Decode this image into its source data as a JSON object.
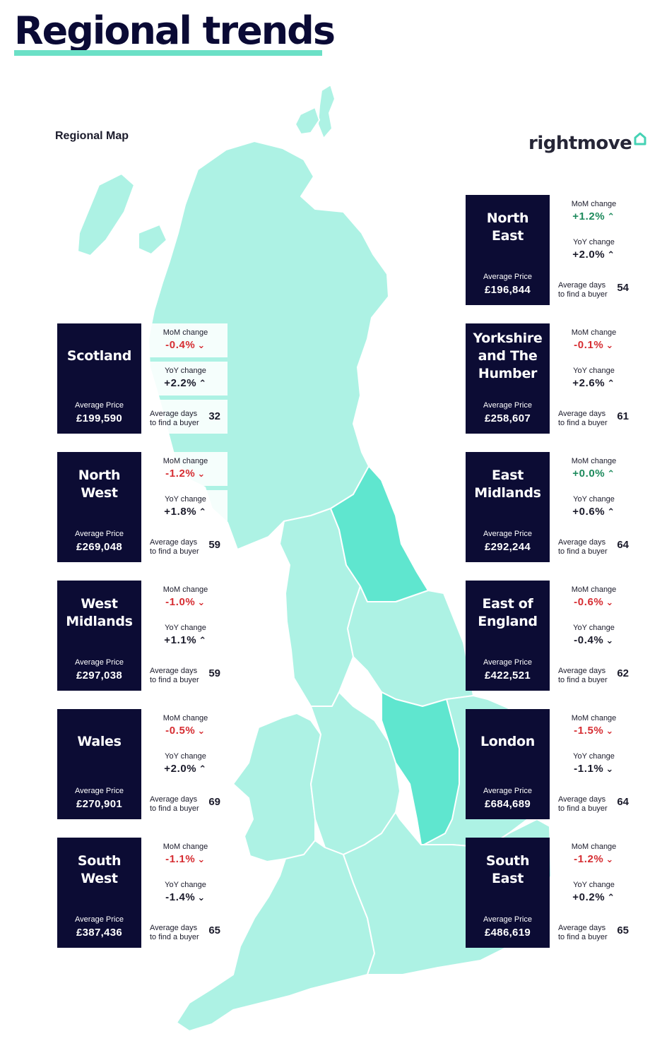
{
  "title": "Regional trends",
  "map_label": "Regional Map",
  "logo_text": "rightmove",
  "colors": {
    "navy": "#0c0c34",
    "map_light": "#adf2e4",
    "map_highlight": "#5fe6cf",
    "accent": "#6be0c6",
    "negative": "#d62d32",
    "positive": "#1d8a5c"
  },
  "labels": {
    "average_price": "Average Price",
    "mom": "MoM change",
    "yoy": "YoY change",
    "days": "Average days\nto find a buyer"
  },
  "regions": [
    {
      "id": "north-east",
      "name": "North\nEast",
      "price": "£196,844",
      "mom": "+1.2%",
      "mom_dir": "up",
      "yoy": "+2.0%",
      "yoy_dir": "up",
      "days": "54"
    },
    {
      "id": "scotland",
      "name": "Scotland",
      "price": "£199,590",
      "mom": "-0.4%",
      "mom_dir": "down",
      "yoy": "+2.2%",
      "yoy_dir": "up",
      "days": "32"
    },
    {
      "id": "yorkshire",
      "name": "Yorkshire\nand The\nHumber",
      "price": "£258,607",
      "mom": "-0.1%",
      "mom_dir": "down",
      "yoy": "+2.6%",
      "yoy_dir": "up",
      "days": "61"
    },
    {
      "id": "north-west",
      "name": "North\nWest",
      "price": "£269,048",
      "mom": "-1.2%",
      "mom_dir": "down",
      "yoy": "+1.8%",
      "yoy_dir": "up",
      "days": "59"
    },
    {
      "id": "east-midlands",
      "name": "East\nMidlands",
      "price": "£292,244",
      "mom": "+0.0%",
      "mom_dir": "up",
      "yoy": "+0.6%",
      "yoy_dir": "up",
      "days": "64"
    },
    {
      "id": "west-midlands",
      "name": "West\nMidlands",
      "price": "£297,038",
      "mom": "-1.0%",
      "mom_dir": "down",
      "yoy": "+1.1%",
      "yoy_dir": "up",
      "days": "59"
    },
    {
      "id": "east-of-england",
      "name": "East of\nEngland",
      "price": "£422,521",
      "mom": "-0.6%",
      "mom_dir": "down",
      "yoy": "-0.4%",
      "yoy_dir": "down",
      "days": "62"
    },
    {
      "id": "wales",
      "name": "Wales",
      "price": "£270,901",
      "mom": "-0.5%",
      "mom_dir": "down",
      "yoy": "+2.0%",
      "yoy_dir": "up",
      "days": "69"
    },
    {
      "id": "london",
      "name": "London",
      "price": "£684,689",
      "mom": "-1.5%",
      "mom_dir": "down",
      "yoy": "-1.1%",
      "yoy_dir": "down",
      "days": "64"
    },
    {
      "id": "south-west",
      "name": "South\nWest",
      "price": "£387,436",
      "mom": "-1.1%",
      "mom_dir": "down",
      "yoy": "-1.4%",
      "yoy_dir": "down",
      "days": "65"
    },
    {
      "id": "south-east",
      "name": "South\nEast",
      "price": "£486,619",
      "mom": "-1.2%",
      "mom_dir": "down",
      "yoy": "+0.2%",
      "yoy_dir": "up",
      "days": "65"
    }
  ]
}
